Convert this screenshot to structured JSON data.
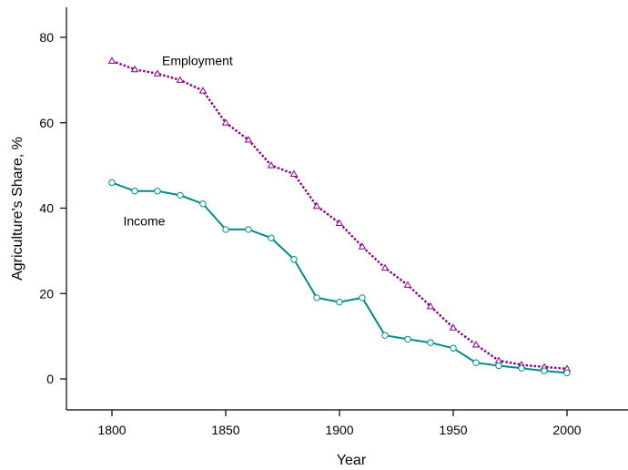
{
  "chart_data": {
    "type": "line",
    "title": "",
    "xlabel": "Year",
    "ylabel": "Agriculture's Share, %",
    "xlim": [
      1780,
      2025
    ],
    "ylim": [
      -7,
      88
    ],
    "xticks": [
      1800,
      1850,
      1900,
      1950,
      2000
    ],
    "yticks": [
      0,
      20,
      40,
      60,
      80
    ],
    "grid": false,
    "legend": "none",
    "series": [
      {
        "name": "Employment",
        "color": "#8b008b",
        "line_style": "dotted",
        "marker": "triangle",
        "x": [
          1800,
          1810,
          1820,
          1830,
          1840,
          1850,
          1860,
          1870,
          1880,
          1890,
          1900,
          1910,
          1920,
          1930,
          1940,
          1950,
          1960,
          1970,
          1980,
          1990,
          2000
        ],
        "values": [
          74.5,
          72.5,
          71.5,
          70,
          67.5,
          60,
          56,
          50,
          48,
          40.5,
          36.5,
          31,
          26,
          22,
          17,
          12,
          8,
          4.3,
          3.3,
          2.8,
          2.4
        ]
      },
      {
        "name": "Income",
        "color": "#008b8b",
        "line_style": "solid",
        "marker": "circle",
        "x": [
          1800,
          1810,
          1820,
          1830,
          1840,
          1850,
          1860,
          1870,
          1880,
          1890,
          1900,
          1910,
          1920,
          1930,
          1940,
          1950,
          1960,
          1970,
          1980,
          1990,
          2000
        ],
        "values": [
          46,
          44,
          44,
          43,
          41,
          35,
          35,
          33,
          28,
          19,
          18,
          19,
          10.2,
          9.3,
          8.5,
          7.2,
          3.8,
          3.1,
          2.5,
          1.9,
          1.4
        ]
      }
    ],
    "annotations": [
      {
        "text": "Employment",
        "x": 1822,
        "y": 73.5
      },
      {
        "text": "Income",
        "x": 1805,
        "y": 36
      }
    ]
  }
}
